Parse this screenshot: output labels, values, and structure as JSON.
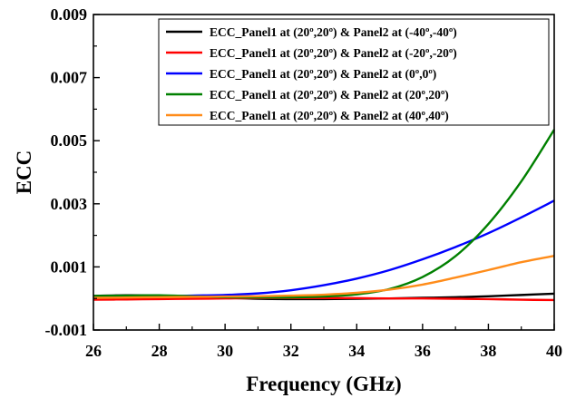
{
  "chart_data": {
    "type": "line",
    "title": "",
    "xlabel": "Frequency (GHz)",
    "ylabel": "ECC",
    "xlim": [
      26,
      40
    ],
    "ylim": [
      -0.001,
      0.009
    ],
    "x_ticks": [
      26,
      28,
      30,
      32,
      34,
      36,
      38,
      40
    ],
    "x_tick_labels": [
      "26",
      "28",
      "30",
      "32",
      "34",
      "36",
      "38",
      "40"
    ],
    "y_ticks": [
      -0.001,
      0.001,
      0.003,
      0.005,
      0.007,
      0.009
    ],
    "y_tick_labels": [
      "-0.001",
      "0.001",
      "0.003",
      "0.005",
      "0.007",
      "0.009"
    ],
    "grid": false,
    "legend_position": "top-right",
    "x": [
      26,
      27,
      28,
      29,
      30,
      31,
      32,
      33,
      34,
      35,
      36,
      37,
      38,
      39,
      40
    ],
    "series": [
      {
        "name": "ECC_Panel1 at (20º,20º) & Panel2 at (-40º,-40º)",
        "color": "#000000",
        "values": [
          8e-05,
          0.0001,
          9e-05,
          6e-05,
          2e-05,
          -1e-05,
          -2e-05,
          -2e-05,
          -1e-05,
          0.0,
          2e-05,
          4e-05,
          7e-05,
          0.00011,
          0.00015
        ]
      },
      {
        "name": "ECC_Panel1 at (20º,20º) & Panel2 at (-20º,-20º)",
        "color": "#ff0000",
        "values": [
          -4e-05,
          -3e-05,
          -2e-05,
          -1e-05,
          0.0,
          1e-05,
          1e-05,
          1e-05,
          1e-05,
          0.0,
          0.0,
          -1e-05,
          -2e-05,
          -4e-05,
          -5e-05
        ]
      },
      {
        "name": "ECC_Panel1 at (20º,20º) & Panel2 at (0º,0º)",
        "color": "#0000ff",
        "values": [
          3e-05,
          5e-05,
          7e-05,
          9e-05,
          0.00011,
          0.00016,
          0.00026,
          0.00042,
          0.00063,
          0.0009,
          0.00124,
          0.00163,
          0.00207,
          0.00257,
          0.0031
        ]
      },
      {
        "name": "ECC_Panel1 at (20º,20º) & Panel2 at (20º,20º)",
        "color": "#008000",
        "values": [
          8e-05,
          9e-05,
          0.0001,
          7e-05,
          4e-05,
          3e-05,
          3e-05,
          6e-05,
          0.00013,
          0.0003,
          0.00068,
          0.00134,
          0.00236,
          0.00371,
          0.00535
        ]
      },
      {
        "name": "ECC_Panel1 at (20º,20º) & Panel2 at (40º,40º)",
        "color": "#ff8c1a",
        "values": [
          2e-05,
          3e-05,
          4e-05,
          5e-05,
          6e-05,
          7e-05,
          9e-05,
          0.00012,
          0.00018,
          0.00028,
          0.00044,
          0.00066,
          0.0009,
          0.00115,
          0.00135
        ]
      }
    ]
  }
}
